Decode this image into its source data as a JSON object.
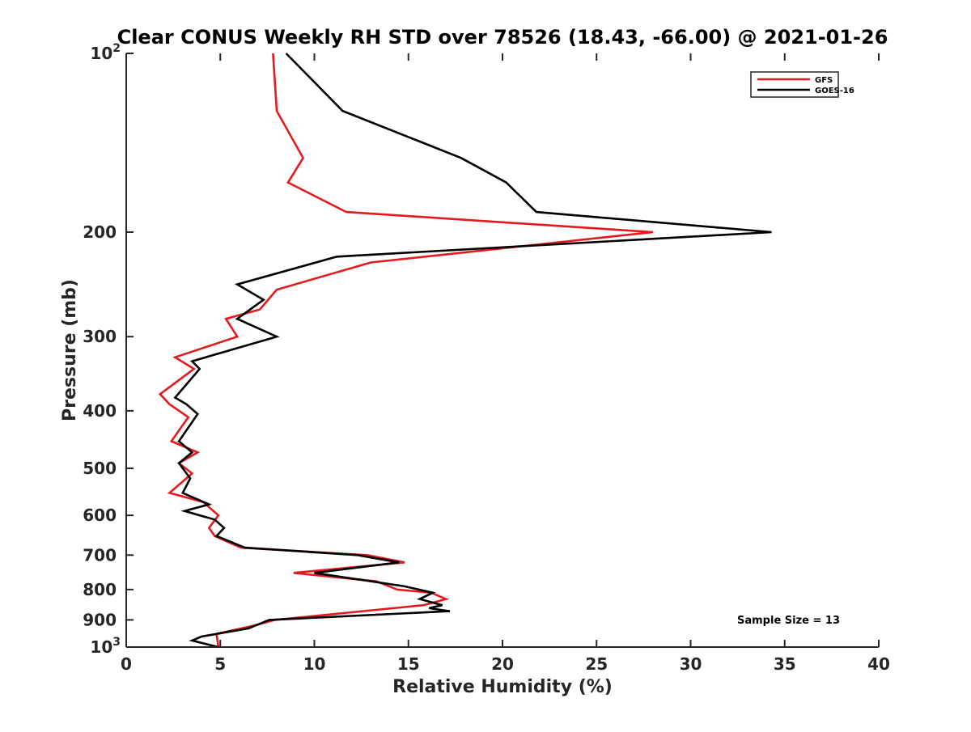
{
  "chart_data": {
    "type": "line",
    "title": "Clear CONUS Weekly RH STD over 78526 (18.43, -66.00) @ 2021-01-26",
    "xlabel": "Relative Humidity (%)",
    "ylabel": "Pressure (mb)",
    "xlim": [
      0,
      40
    ],
    "ylim": [
      100,
      1000
    ],
    "y_scale": "log",
    "y_reversed": true,
    "grid": false,
    "legend_placement": "top-right",
    "x_ticks": [
      "0",
      "5",
      "10",
      "15",
      "20",
      "25",
      "30",
      "35",
      "40"
    ],
    "y_ticks": [
      {
        "value": 100,
        "base": "10",
        "exp": "2"
      },
      {
        "value": 200,
        "label": "200"
      },
      {
        "value": 300,
        "label": "300"
      },
      {
        "value": 400,
        "label": "400"
      },
      {
        "value": 500,
        "label": "500"
      },
      {
        "value": 600,
        "label": "600"
      },
      {
        "value": 700,
        "label": "700"
      },
      {
        "value": 800,
        "label": "800"
      },
      {
        "value": 900,
        "label": "900"
      },
      {
        "value": 1000,
        "base": "10",
        "exp": "3"
      }
    ],
    "annotation": "Sample Size = 13",
    "series": [
      {
        "name": "GFS",
        "color": "#e41a1c",
        "points": [
          [
            7.8,
            100
          ],
          [
            8.0,
            125
          ],
          [
            9.4,
            150
          ],
          [
            8.6,
            165
          ],
          [
            11.7,
            185
          ],
          [
            28.0,
            200
          ],
          [
            13.0,
            225
          ],
          [
            8.0,
            250
          ],
          [
            7.1,
            270
          ],
          [
            5.3,
            280
          ],
          [
            5.9,
            300
          ],
          [
            2.6,
            325
          ],
          [
            3.6,
            340
          ],
          [
            1.8,
            375
          ],
          [
            2.3,
            390
          ],
          [
            3.3,
            410
          ],
          [
            2.4,
            450
          ],
          [
            3.8,
            470
          ],
          [
            2.8,
            490
          ],
          [
            3.5,
            510
          ],
          [
            2.3,
            550
          ],
          [
            4.1,
            570
          ],
          [
            4.9,
            600
          ],
          [
            4.4,
            630
          ],
          [
            4.7,
            650
          ],
          [
            6.1,
            680
          ],
          [
            12.8,
            700
          ],
          [
            14.8,
            720
          ],
          [
            8.9,
            750
          ],
          [
            13.3,
            775
          ],
          [
            14.4,
            800
          ],
          [
            16.2,
            810
          ],
          [
            17.0,
            830
          ],
          [
            15.8,
            850
          ],
          [
            7.9,
            900
          ],
          [
            6.8,
            920
          ],
          [
            4.8,
            950
          ],
          [
            4.9,
            1000
          ]
        ]
      },
      {
        "name": "GOES-16",
        "color": "#000000",
        "points": [
          [
            8.5,
            100
          ],
          [
            11.5,
            125
          ],
          [
            17.8,
            150
          ],
          [
            20.2,
            165
          ],
          [
            21.8,
            185
          ],
          [
            34.3,
            200
          ],
          [
            11.2,
            220
          ],
          [
            5.9,
            245
          ],
          [
            7.3,
            260
          ],
          [
            5.9,
            280
          ],
          [
            8.0,
            300
          ],
          [
            3.5,
            330
          ],
          [
            3.9,
            340
          ],
          [
            2.6,
            380
          ],
          [
            3.2,
            390
          ],
          [
            3.8,
            405
          ],
          [
            2.8,
            450
          ],
          [
            3.5,
            470
          ],
          [
            2.8,
            490
          ],
          [
            3.4,
            520
          ],
          [
            3.0,
            550
          ],
          [
            4.4,
            575
          ],
          [
            3.1,
            590
          ],
          [
            4.7,
            610
          ],
          [
            5.2,
            630
          ],
          [
            4.8,
            650
          ],
          [
            6.3,
            680
          ],
          [
            12.3,
            700
          ],
          [
            14.5,
            720
          ],
          [
            10.0,
            750
          ],
          [
            14.8,
            790
          ],
          [
            16.3,
            810
          ],
          [
            15.6,
            830
          ],
          [
            16.8,
            850
          ],
          [
            16.1,
            860
          ],
          [
            17.2,
            870
          ],
          [
            7.6,
            900
          ],
          [
            6.5,
            930
          ],
          [
            4.0,
            960
          ],
          [
            3.5,
            975
          ],
          [
            4.9,
            1000
          ]
        ]
      }
    ]
  }
}
